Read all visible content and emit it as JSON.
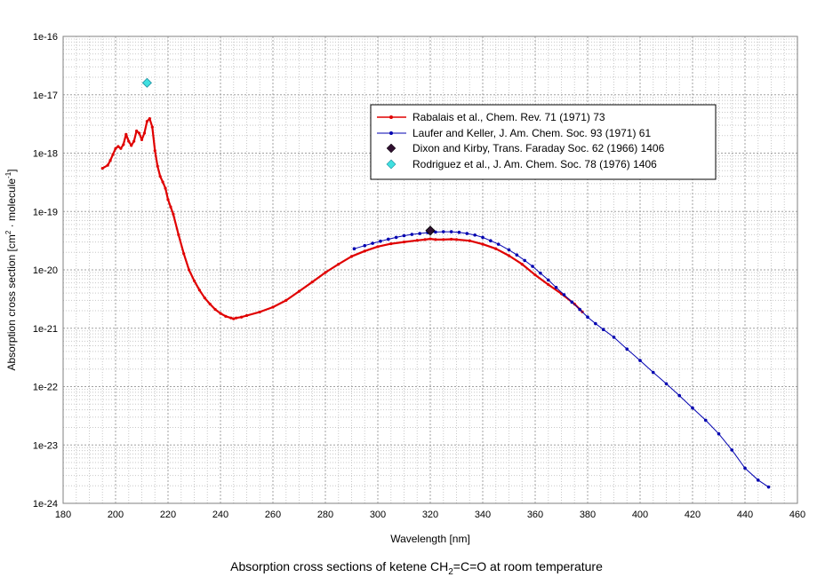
{
  "caption": {
    "prefix": "Absorption cross sections of ketene CH",
    "sub": "2",
    "suffix": "=C=O at room temperature"
  },
  "chart_data": {
    "type": "line",
    "xlabel": "Wavelength [nm]",
    "ylabel_prefix": "Absorption cross section [cm",
    "ylabel_sup1": "2",
    "ylabel_mid": " · molecule",
    "ylabel_sup2": "-1",
    "ylabel_suffix": "]",
    "xlim": [
      180,
      460
    ],
    "ylim_log10": [
      -24,
      -16
    ],
    "y_scale": "log",
    "grid": true,
    "legend_position": "top-right",
    "x_ticks": [
      "180",
      "200",
      "220",
      "240",
      "260",
      "280",
      "300",
      "320",
      "340",
      "360",
      "380",
      "400",
      "420",
      "440",
      "460"
    ],
    "y_ticks": [
      "1e-24",
      "1e-23",
      "1e-22",
      "1e-21",
      "1e-20",
      "1e-19",
      "1e-18",
      "1e-17",
      "1e-16"
    ],
    "colors": {
      "rabalais": "#e00000",
      "laufer": "#0000b0",
      "dixon": "#301030",
      "rodriguez": "#40e0e0"
    },
    "series": [
      {
        "name": "Rabalais et al., Chem. Rev. 71 (1971) 73",
        "key": "rabalais",
        "x": [
          195,
          197,
          198,
          199,
          200,
          201,
          202,
          203,
          204,
          205,
          206,
          207,
          208,
          209,
          210,
          211,
          212,
          213,
          214,
          215,
          216,
          217,
          218,
          219,
          220,
          221,
          222,
          224,
          226,
          228,
          230,
          232,
          234,
          236,
          238,
          240,
          242,
          244,
          245,
          246,
          248,
          250,
          255,
          260,
          265,
          270,
          275,
          280,
          285,
          290,
          295,
          300,
          305,
          310,
          315,
          318,
          320,
          322,
          325,
          328,
          330,
          335,
          340,
          345,
          350,
          355,
          360,
          365,
          370,
          375,
          378
        ],
        "y": [
          5.5e-19,
          6.2e-19,
          7.5e-19,
          9.5e-19,
          1.2e-18,
          1.3e-18,
          1.2e-18,
          1.4e-18,
          2.1e-18,
          1.6e-18,
          1.35e-18,
          1.6e-18,
          2.4e-18,
          2.2e-18,
          1.7e-18,
          2.2e-18,
          3.5e-18,
          3.9e-18,
          2.8e-18,
          1.1e-18,
          6e-19,
          4e-19,
          3.2e-19,
          2.5e-19,
          1.6e-19,
          1.2e-19,
          9e-20,
          4e-20,
          1.9e-20,
          1e-20,
          6.5e-21,
          4.5e-21,
          3.3e-21,
          2.6e-21,
          2.1e-21,
          1.8e-21,
          1.6e-21,
          1.5e-21,
          1.45e-21,
          1.5e-21,
          1.55e-21,
          1.65e-21,
          1.9e-21,
          2.3e-21,
          3e-21,
          4.3e-21,
          6.2e-21,
          9e-21,
          1.25e-20,
          1.7e-20,
          2.1e-20,
          2.5e-20,
          2.8e-20,
          3e-20,
          3.2e-20,
          3.3e-20,
          3.4e-20,
          3.3e-20,
          3.3e-20,
          3.35e-20,
          3.3e-20,
          3.15e-20,
          2.75e-20,
          2.3e-20,
          1.75e-20,
          1.25e-20,
          8.2e-21,
          5.6e-21,
          3.9e-21,
          2.6e-21,
          1.9e-21
        ]
      },
      {
        "name": "Laufer and Keller, J. Am. Chem. Soc. 93 (1971) 61",
        "key": "laufer",
        "x": [
          291,
          295,
          298,
          301,
          304,
          307,
          310,
          313,
          316,
          319,
          322,
          325,
          328,
          331,
          334,
          337,
          340,
          343,
          346,
          350,
          353,
          356,
          359,
          362,
          365,
          368,
          371,
          374,
          377,
          380,
          383,
          386,
          390,
          395,
          400,
          405,
          410,
          415,
          420,
          425,
          430,
          435,
          440,
          445,
          449
        ],
        "y": [
          2.3e-20,
          2.6e-20,
          2.85e-20,
          3.1e-20,
          3.35e-20,
          3.6e-20,
          3.85e-20,
          4.05e-20,
          4.2e-20,
          4.35e-20,
          4.45e-20,
          4.5e-20,
          4.5e-20,
          4.4e-20,
          4.2e-20,
          3.95e-20,
          3.6e-20,
          3.15e-20,
          2.75e-20,
          2.2e-20,
          1.8e-20,
          1.45e-20,
          1.15e-20,
          8.8e-21,
          6.7e-21,
          5e-21,
          3.75e-21,
          2.8e-21,
          2.1e-21,
          1.55e-21,
          1.2e-21,
          9.5e-22,
          7e-22,
          4.4e-22,
          2.8e-22,
          1.75e-22,
          1.12e-22,
          7e-23,
          4.3e-23,
          2.65e-23,
          1.55e-23,
          8.2e-24,
          4e-24,
          2.5e-24,
          1.9e-24
        ]
      },
      {
        "name": "Dixon and Kirby, Trans. Faraday Soc. 62 (1966) 1406",
        "key": "dixon",
        "x": [
          320
        ],
        "y": [
          4.7e-20
        ]
      },
      {
        "name": "Rodriguez et al., J. Am. Chem. Soc. 78 (1976) 1406",
        "key": "rodriguez",
        "x": [
          212
        ],
        "y": [
          1.6e-17
        ]
      }
    ]
  }
}
